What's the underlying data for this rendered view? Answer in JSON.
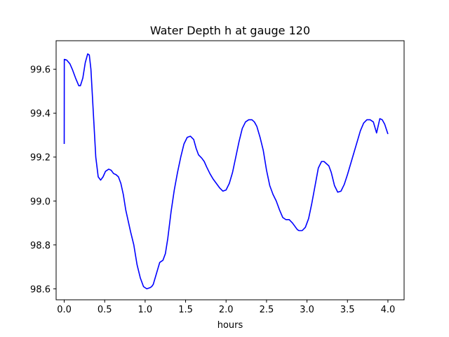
{
  "chart_data": {
    "type": "line",
    "title": "Water Depth h at gauge 120",
    "xlabel": "hours",
    "ylabel": "",
    "xlim": [
      -0.1,
      4.2
    ],
    "ylim": [
      98.55,
      99.73
    ],
    "xticks": [
      0.0,
      0.5,
      1.0,
      1.5,
      2.0,
      2.5,
      3.0,
      3.5,
      4.0
    ],
    "xtick_labels": [
      "0.0",
      "0.5",
      "1.0",
      "1.5",
      "2.0",
      "2.5",
      "3.0",
      "3.5",
      "4.0"
    ],
    "yticks": [
      98.6,
      98.8,
      99.0,
      99.2,
      99.4,
      99.6
    ],
    "ytick_labels": [
      "98.6",
      "98.8",
      "99.0",
      "99.2",
      "99.4",
      "99.6"
    ],
    "grid": false,
    "series": [
      {
        "color": "#0000ff",
        "x": [
          0.0,
          0.001,
          0.03,
          0.07,
          0.1,
          0.14,
          0.18,
          0.2,
          0.23,
          0.26,
          0.29,
          0.31,
          0.33,
          0.36,
          0.39,
          0.42,
          0.45,
          0.48,
          0.51,
          0.55,
          0.58,
          0.61,
          0.64,
          0.67,
          0.7,
          0.73,
          0.76,
          0.79,
          0.82,
          0.86,
          0.9,
          0.94,
          0.98,
          1.02,
          1.06,
          1.08,
          1.1,
          1.14,
          1.18,
          1.22,
          1.25,
          1.28,
          1.32,
          1.36,
          1.4,
          1.44,
          1.48,
          1.52,
          1.56,
          1.6,
          1.63,
          1.66,
          1.7,
          1.73,
          1.76,
          1.8,
          1.84,
          1.88,
          1.92,
          1.96,
          2.0,
          2.04,
          2.08,
          2.12,
          2.16,
          2.2,
          2.24,
          2.28,
          2.32,
          2.35,
          2.38,
          2.42,
          2.46,
          2.5,
          2.54,
          2.58,
          2.62,
          2.66,
          2.7,
          2.74,
          2.78,
          2.82,
          2.86,
          2.88,
          2.9,
          2.94,
          2.98,
          3.02,
          3.06,
          3.1,
          3.14,
          3.18,
          3.21,
          3.24,
          3.27,
          3.3,
          3.34,
          3.38,
          3.42,
          3.46,
          3.5,
          3.54,
          3.58,
          3.62,
          3.66,
          3.7,
          3.74,
          3.78,
          3.82,
          3.86,
          3.9,
          3.93,
          3.96,
          4.0
        ],
        "y": [
          99.26,
          99.645,
          99.642,
          99.625,
          99.6,
          99.56,
          99.525,
          99.525,
          99.56,
          99.63,
          99.67,
          99.665,
          99.6,
          99.4,
          99.2,
          99.11,
          99.095,
          99.11,
          99.135,
          99.145,
          99.14,
          99.125,
          99.12,
          99.11,
          99.08,
          99.03,
          98.96,
          98.91,
          98.86,
          98.8,
          98.71,
          98.65,
          98.61,
          98.6,
          98.605,
          98.61,
          98.62,
          98.67,
          98.72,
          98.73,
          98.76,
          98.83,
          98.95,
          99.05,
          99.13,
          99.2,
          99.26,
          99.29,
          99.295,
          99.28,
          99.24,
          99.21,
          99.195,
          99.18,
          99.155,
          99.125,
          99.1,
          99.08,
          99.06,
          99.045,
          99.05,
          99.08,
          99.13,
          99.2,
          99.27,
          99.33,
          99.36,
          99.37,
          99.37,
          99.36,
          99.34,
          99.29,
          99.23,
          99.14,
          99.07,
          99.03,
          99.0,
          98.96,
          98.925,
          98.915,
          98.915,
          98.9,
          98.88,
          98.87,
          98.865,
          98.865,
          98.88,
          98.92,
          98.99,
          99.07,
          99.15,
          99.18,
          99.18,
          99.17,
          99.16,
          99.13,
          99.07,
          99.04,
          99.045,
          99.075,
          99.12,
          99.17,
          99.22,
          99.27,
          99.32,
          99.355,
          99.37,
          99.37,
          99.36,
          99.31,
          99.375,
          99.37,
          99.35,
          99.305
        ]
      }
    ]
  }
}
